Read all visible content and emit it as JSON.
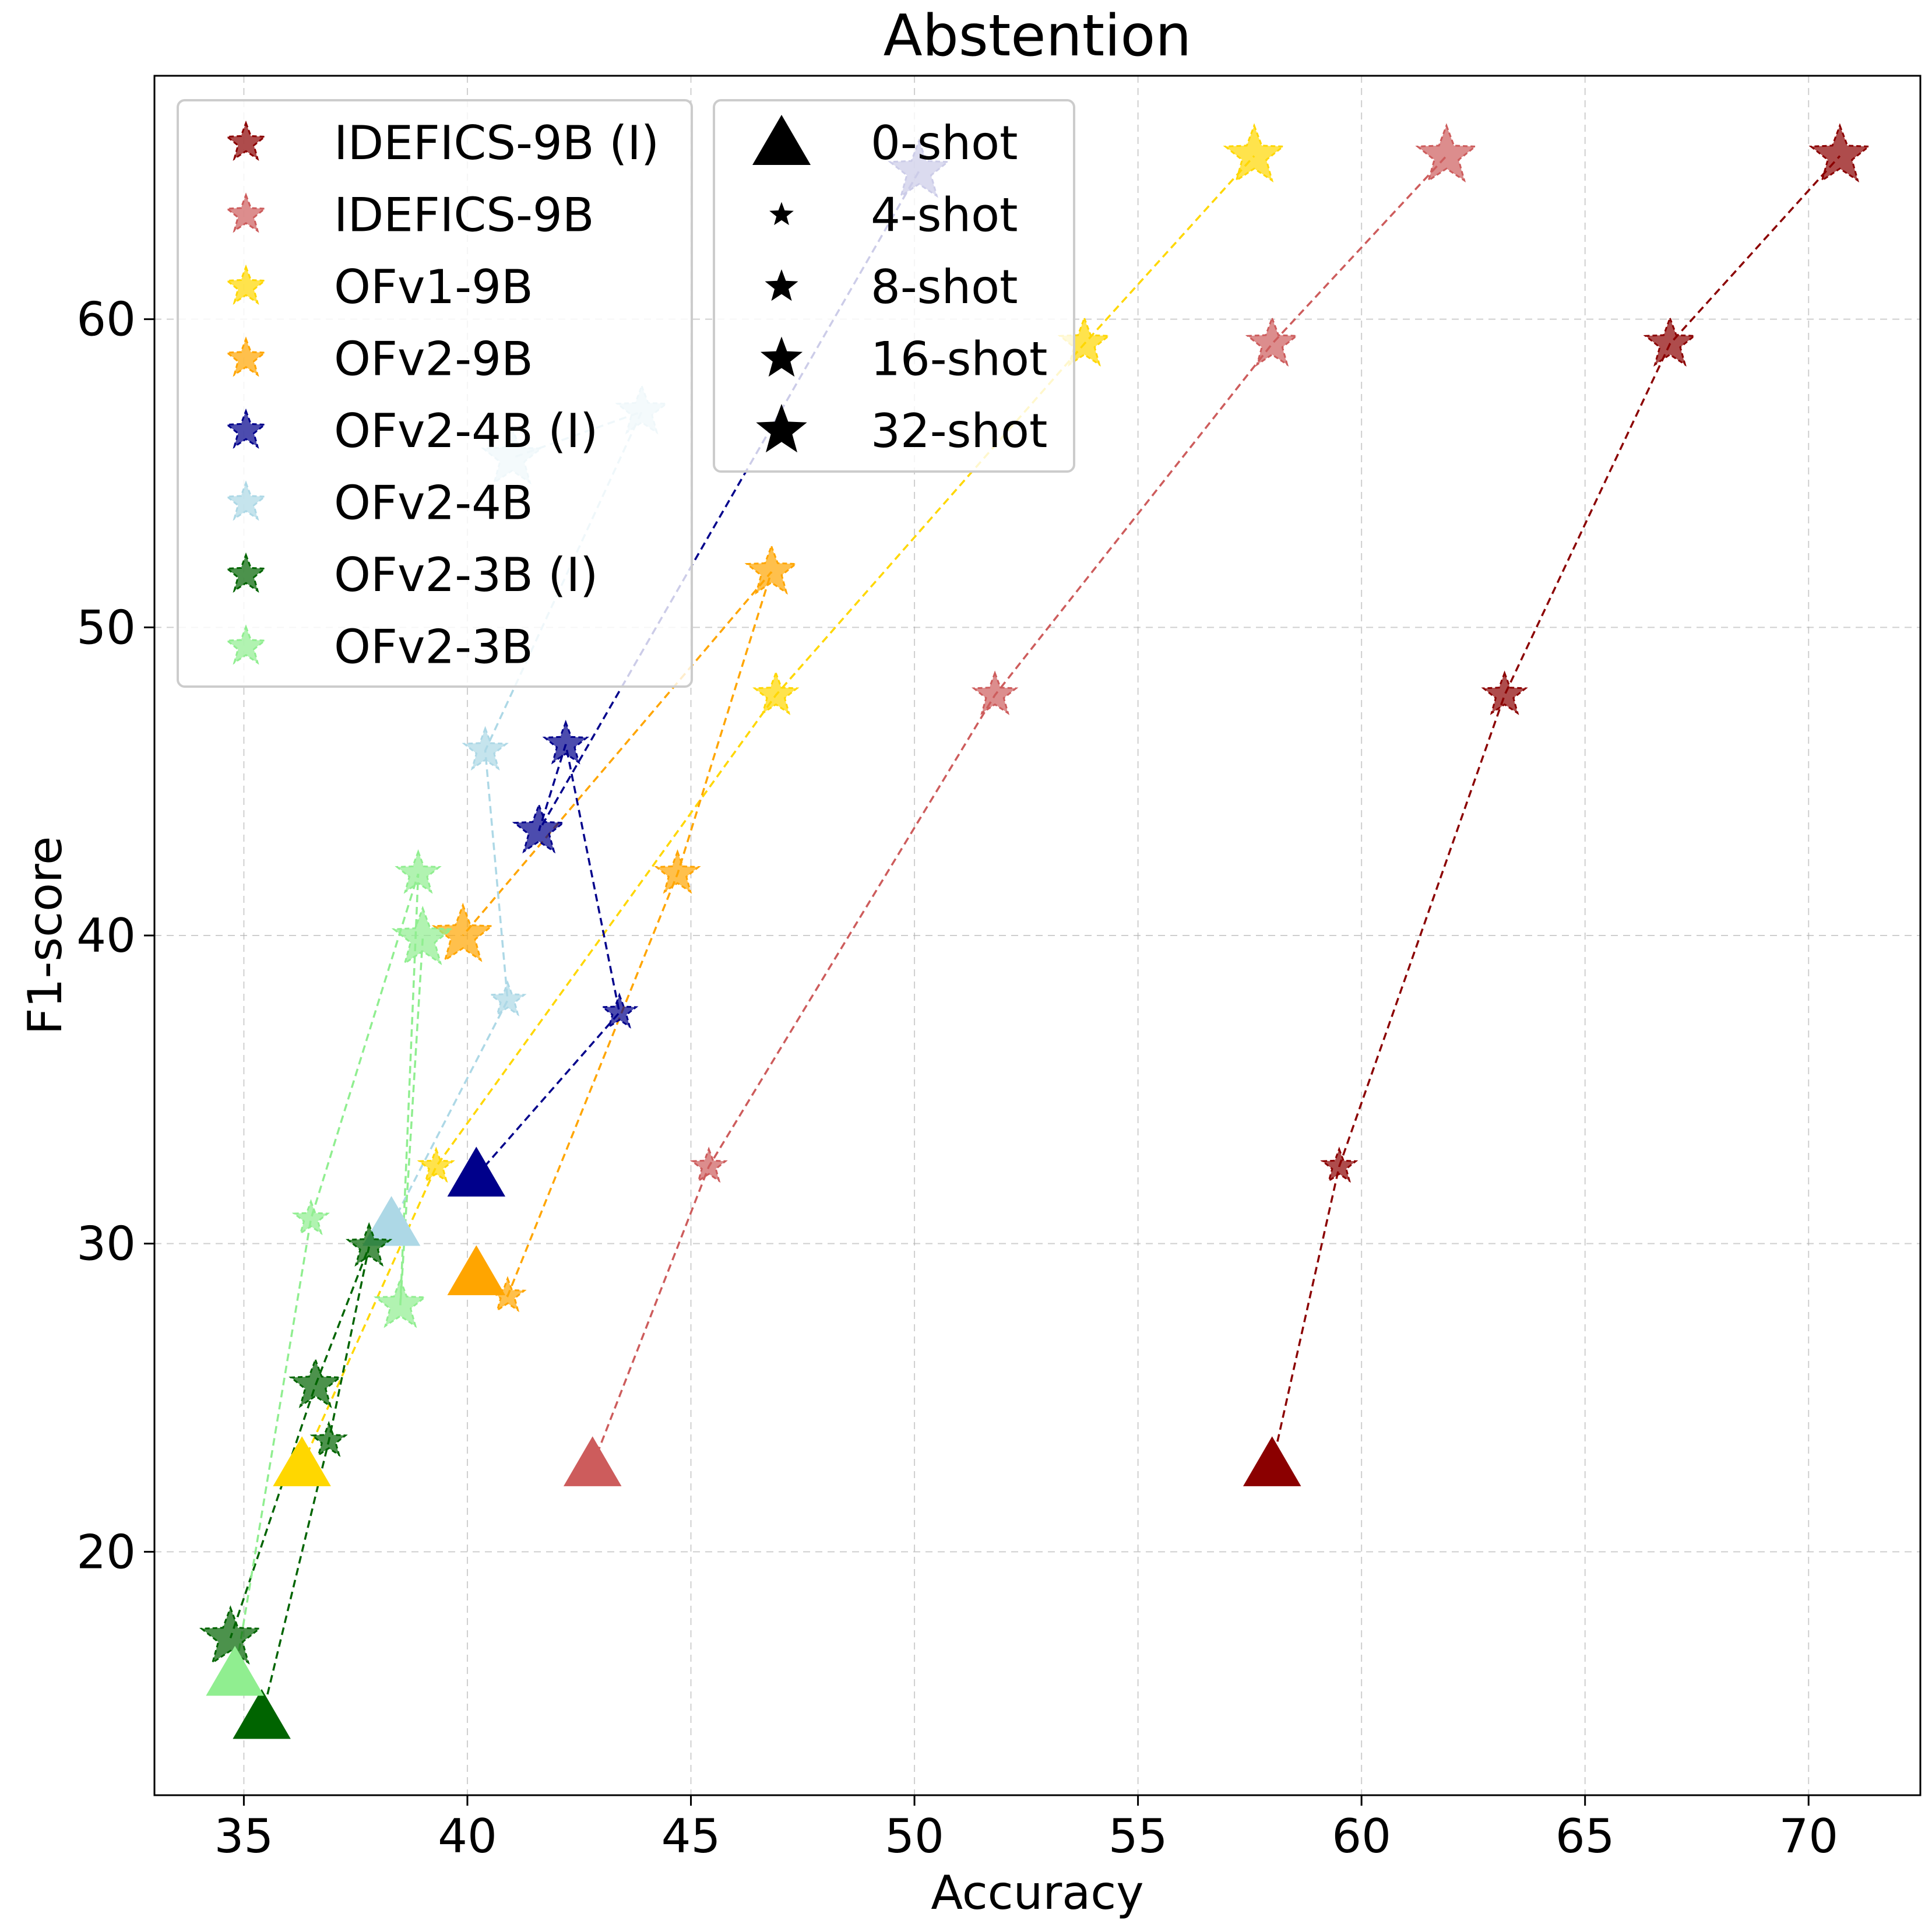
{
  "chart_data": {
    "type": "scatter",
    "title": "Abstention",
    "xlabel": "Accuracy",
    "ylabel": "F1-score",
    "xlim": [
      33,
      72.5
    ],
    "ylim": [
      12.1,
      67.9
    ],
    "xticks": [
      35,
      40,
      45,
      50,
      55,
      60,
      65,
      70
    ],
    "yticks": [
      20,
      30,
      40,
      50,
      60
    ],
    "grid": true,
    "line_style": "dashed",
    "shots": [
      "0-shot",
      "4-shot",
      "8-shot",
      "16-shot",
      "32-shot"
    ],
    "series": [
      {
        "name": "IDEFICS-9B (I)",
        "color": "#8b0000",
        "points": [
          [
            58.0,
            22.8
          ],
          [
            59.5,
            32.5
          ],
          [
            63.2,
            47.8
          ],
          [
            66.9,
            59.2
          ],
          [
            70.7,
            65.3
          ]
        ]
      },
      {
        "name": "IDEFICS-9B",
        "color": "#cd5c5c",
        "points": [
          [
            42.8,
            22.8
          ],
          [
            45.4,
            32.5
          ],
          [
            51.8,
            47.8
          ],
          [
            58.0,
            59.2
          ],
          [
            61.9,
            65.3
          ]
        ]
      },
      {
        "name": "OFv1-9B",
        "color": "#ffd700",
        "points": [
          [
            36.3,
            22.8
          ],
          [
            39.3,
            32.5
          ],
          [
            46.9,
            47.8
          ],
          [
            53.8,
            59.2
          ],
          [
            57.6,
            65.3
          ]
        ]
      },
      {
        "name": "OFv2-9B",
        "color": "#ffa500",
        "points": [
          [
            40.2,
            29.0
          ],
          [
            40.9,
            28.3
          ],
          [
            44.7,
            42.0
          ],
          [
            46.8,
            51.8
          ],
          [
            39.9,
            40.0
          ]
        ]
      },
      {
        "name": "OFv2-4B (I)",
        "color": "#00008b",
        "points": [
          [
            40.2,
            32.2
          ],
          [
            43.4,
            37.5
          ],
          [
            42.2,
            46.2
          ],
          [
            41.6,
            43.4
          ],
          [
            50.1,
            64.8
          ]
        ]
      },
      {
        "name": "OFv2-4B",
        "color": "#add8e6",
        "points": [
          [
            38.3,
            30.6
          ],
          [
            40.9,
            37.9
          ],
          [
            40.4,
            46.0
          ],
          [
            43.9,
            57.0
          ],
          [
            41.0,
            55.5
          ]
        ]
      },
      {
        "name": "OFv2-3B (I)",
        "color": "#006400",
        "points": [
          [
            35.4,
            14.6
          ],
          [
            36.9,
            23.6
          ],
          [
            37.8,
            29.9
          ],
          [
            36.6,
            25.4
          ],
          [
            34.7,
            17.2
          ]
        ]
      },
      {
        "name": "OFv2-3B",
        "color": "#90ee90",
        "points": [
          [
            34.8,
            16.0
          ],
          [
            36.5,
            30.8
          ],
          [
            38.9,
            42.0
          ],
          [
            38.5,
            28.0
          ],
          [
            39.0,
            39.9
          ]
        ]
      }
    ]
  }
}
